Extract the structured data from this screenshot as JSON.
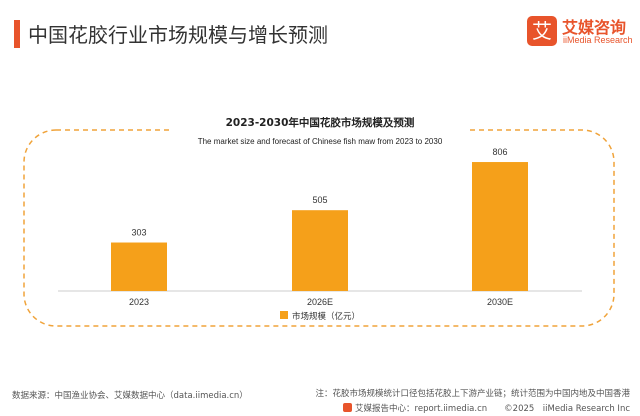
{
  "header": {
    "title": "中国花胶行业市场规模与增长预测",
    "logo": {
      "mark": "艾",
      "name_cn": "艾媒咨询",
      "name_en": "iiMedia Research"
    }
  },
  "colors": {
    "accent": "#e8542b",
    "bar": "#f5a01a",
    "frame": "#f0a33a"
  },
  "chart_data": {
    "type": "bar",
    "title": "2023-2030年中国花胶市场规模及预测",
    "subtitle": "The market size and forecast of Chinese fish maw from 2023 to 2030",
    "categories": [
      "2023",
      "2026E",
      "2030E"
    ],
    "series": [
      {
        "name": "市场规模（亿元）",
        "values": [
          303,
          505,
          806
        ]
      }
    ],
    "data_labels": [
      "303",
      "505",
      "806"
    ],
    "ylim": [
      0,
      900
    ],
    "grid": false,
    "legend_position": "bottom"
  },
  "footer": {
    "source": "数据来源：中国渔业协会、艾媒数据中心（data.iimedia.cn）",
    "note": "注：花胶市场规模统计口径包括花胶上下游产业链；统计范围为中国内地及中国香港",
    "report": "艾媒报告中心：report.iimedia.cn　　©2025　iiMedia Research Inc"
  }
}
